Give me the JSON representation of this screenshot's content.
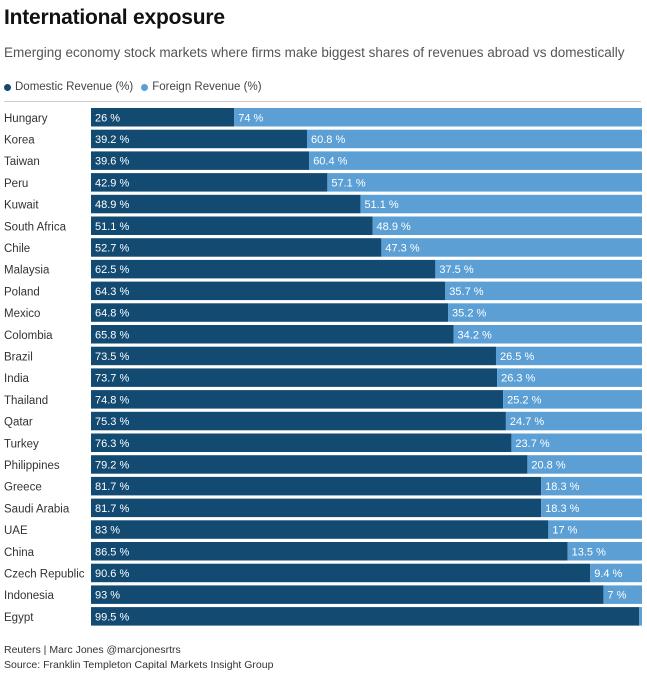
{
  "header": {
    "title": "International exposure",
    "subtitle": "Emerging economy stock markets where firms make biggest shares of revenues abroad vs domestically"
  },
  "legend": {
    "domestic": "Domestic Revenue (%)",
    "foreign": "Foreign Revenue (%)"
  },
  "colors": {
    "domestic": "#124a72",
    "foreign": "#5b9fd4"
  },
  "footer": {
    "credit": "Reuters | Marc Jones @marcjonesrtrs",
    "source": "Source: Franklin Templeton Capital Markets Insight Group"
  },
  "chart_data": {
    "type": "bar",
    "orientation": "horizontal",
    "stacked": true,
    "unit": "%",
    "categories": [
      "Hungary",
      "Korea",
      "Taiwan",
      "Peru",
      "Kuwait",
      "South Africa",
      "Chile",
      "Malaysia",
      "Poland",
      "Mexico",
      "Colombia",
      "Brazil",
      "India",
      "Thailand",
      "Qatar",
      "Turkey",
      "Philippines",
      "Greece",
      "Saudi Arabia",
      "UAE",
      "China",
      "Czech Republic",
      "Indonesia",
      "Egypt"
    ],
    "series": [
      {
        "name": "Domestic Revenue (%)",
        "values": [
          26,
          39.2,
          39.6,
          42.9,
          48.9,
          51.1,
          52.7,
          62.5,
          64.3,
          64.8,
          65.8,
          73.5,
          73.7,
          74.8,
          75.3,
          76.3,
          79.2,
          81.7,
          81.7,
          83,
          86.5,
          90.6,
          93,
          99.5
        ]
      },
      {
        "name": "Foreign Revenue (%)",
        "values": [
          74,
          60.8,
          60.4,
          57.1,
          51.1,
          48.9,
          47.3,
          37.5,
          35.7,
          35.2,
          34.2,
          26.5,
          26.3,
          25.2,
          24.7,
          23.7,
          20.8,
          18.3,
          18.3,
          17,
          13.5,
          9.4,
          7,
          0.5
        ]
      }
    ],
    "labels": {
      "domestic": [
        "26 %",
        "39.2 %",
        "39.6 %",
        "42.9 %",
        "48.9 %",
        "51.1 %",
        "52.7 %",
        "62.5 %",
        "64.3 %",
        "64.8 %",
        "65.8 %",
        "73.5 %",
        "73.7 %",
        "74.8 %",
        "75.3 %",
        "76.3 %",
        "79.2 %",
        "81.7 %",
        "81.7 %",
        "83 %",
        "86.5 %",
        "90.6 %",
        "93 %",
        "99.5 %"
      ],
      "foreign": [
        "74 %",
        "60.8 %",
        "60.4 %",
        "57.1 %",
        "51.1 %",
        "48.9 %",
        "47.3 %",
        "37.5 %",
        "35.7 %",
        "35.2 %",
        "34.2 %",
        "26.5 %",
        "26.3 %",
        "25.2 %",
        "24.7 %",
        "23.7 %",
        "20.8 %",
        "18.3 %",
        "18.3 %",
        "17 %",
        "13.5 %",
        "9.4 %",
        "7 %",
        ""
      ]
    },
    "xlim": [
      0,
      100
    ]
  }
}
